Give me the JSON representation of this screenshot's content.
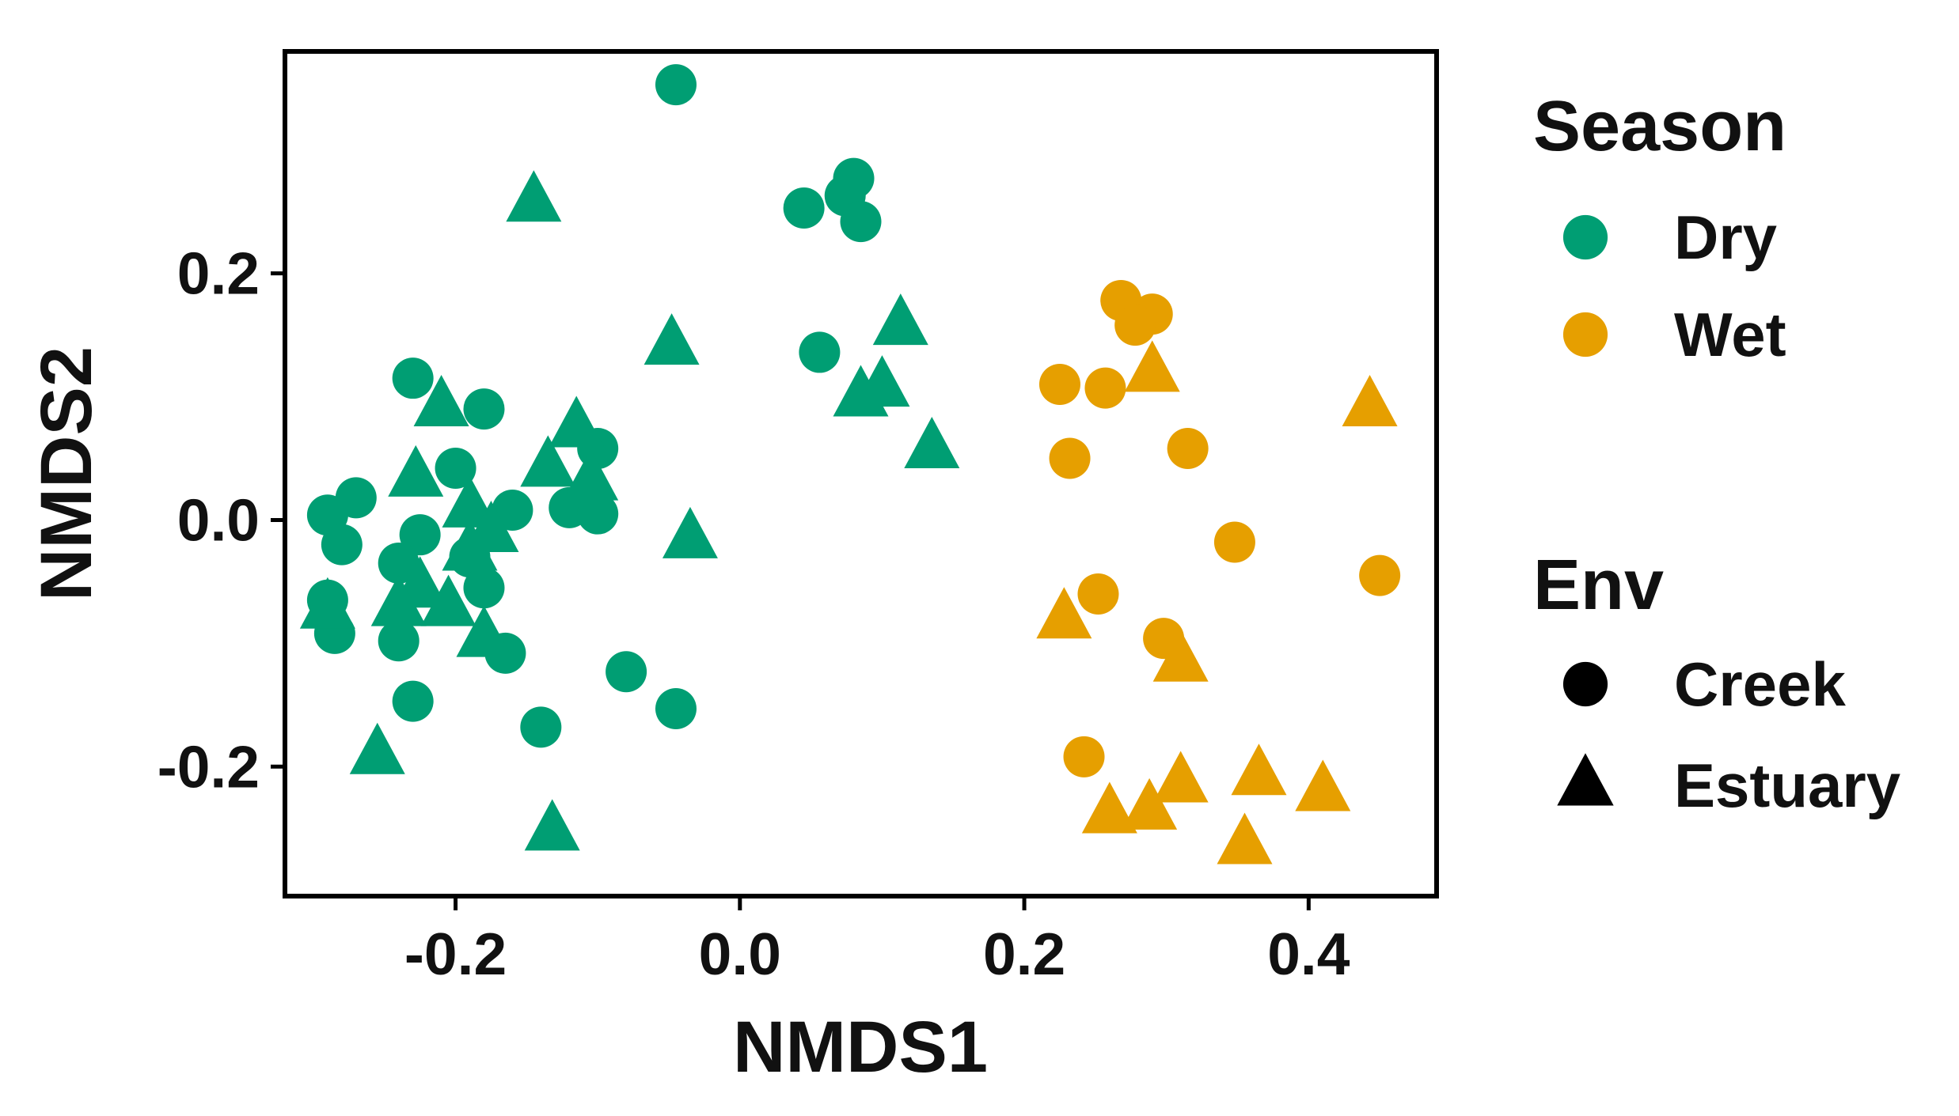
{
  "chart_data": {
    "type": "scatter",
    "title": "",
    "xlabel": "NMDS1",
    "ylabel": "NMDS2",
    "xlim": [
      -0.32,
      0.49
    ],
    "ylim": [
      -0.305,
      0.38
    ],
    "xticks": [
      -0.2,
      0.0,
      0.2,
      0.4
    ],
    "xtick_labels": [
      "-0.2",
      "0.0",
      "0.2",
      "0.4"
    ],
    "yticks": [
      -0.2,
      0.0,
      0.2
    ],
    "ytick_labels": [
      "-0.2",
      "0.0",
      "0.2"
    ],
    "grid": false,
    "legend_position": "right",
    "legends": [
      {
        "title": "Season",
        "entries": [
          {
            "label": "Dry",
            "color": "#009E73",
            "shape": "circle"
          },
          {
            "label": "Wet",
            "color": "#E69F00",
            "shape": "circle"
          }
        ]
      },
      {
        "title": "Env",
        "entries": [
          {
            "label": "Creek",
            "color": "#000000",
            "shape": "circle"
          },
          {
            "label": "Estuary",
            "color": "#000000",
            "shape": "triangle"
          }
        ]
      }
    ],
    "colors": {
      "Dry": "#009E73",
      "Wet": "#E69F00"
    },
    "series": [
      {
        "name": "Dry Creek",
        "season": "Dry",
        "env": "Creek",
        "points": [
          [
            -0.045,
            0.353
          ],
          [
            0.045,
            0.253
          ],
          [
            0.08,
            0.277
          ],
          [
            0.074,
            0.263
          ],
          [
            0.085,
            0.242
          ],
          [
            0.056,
            0.136
          ],
          [
            -0.23,
            0.115
          ],
          [
            -0.18,
            0.09
          ],
          [
            -0.1,
            0.058
          ],
          [
            -0.2,
            0.042
          ],
          [
            -0.27,
            0.018
          ],
          [
            -0.29,
            0.004
          ],
          [
            -0.16,
            0.008
          ],
          [
            -0.12,
            0.01
          ],
          [
            -0.1,
            0.005
          ],
          [
            -0.28,
            -0.02
          ],
          [
            -0.225,
            -0.012
          ],
          [
            -0.24,
            -0.035
          ],
          [
            -0.19,
            -0.03
          ],
          [
            -0.18,
            -0.055
          ],
          [
            -0.29,
            -0.065
          ],
          [
            -0.285,
            -0.092
          ],
          [
            -0.24,
            -0.098
          ],
          [
            -0.165,
            -0.108
          ],
          [
            -0.08,
            -0.123
          ],
          [
            -0.23,
            -0.147
          ],
          [
            -0.045,
            -0.153
          ],
          [
            -0.14,
            -0.168
          ]
        ]
      },
      {
        "name": "Dry Estuary",
        "season": "Dry",
        "env": "Estuary",
        "points": [
          [
            -0.145,
            0.258
          ],
          [
            -0.048,
            0.142
          ],
          [
            0.113,
            0.158
          ],
          [
            0.1,
            0.108
          ],
          [
            0.085,
            0.1
          ],
          [
            0.135,
            0.058
          ],
          [
            -0.21,
            0.092
          ],
          [
            -0.115,
            0.075
          ],
          [
            -0.228,
            0.035
          ],
          [
            -0.135,
            0.043
          ],
          [
            -0.105,
            0.032
          ],
          [
            -0.19,
            0.01
          ],
          [
            -0.175,
            -0.01
          ],
          [
            -0.035,
            -0.015
          ],
          [
            -0.19,
            -0.025
          ],
          [
            -0.225,
            -0.055
          ],
          [
            -0.24,
            -0.07
          ],
          [
            -0.205,
            -0.07
          ],
          [
            -0.29,
            -0.072
          ],
          [
            -0.18,
            -0.095
          ],
          [
            -0.255,
            -0.19
          ],
          [
            -0.132,
            -0.252
          ]
        ]
      },
      {
        "name": "Wet Creek",
        "season": "Wet",
        "env": "Creek",
        "points": [
          [
            0.268,
            0.178
          ],
          [
            0.29,
            0.167
          ],
          [
            0.278,
            0.158
          ],
          [
            0.225,
            0.11
          ],
          [
            0.257,
            0.107
          ],
          [
            0.315,
            0.058
          ],
          [
            0.232,
            0.05
          ],
          [
            0.348,
            -0.018
          ],
          [
            0.45,
            -0.045
          ],
          [
            0.252,
            -0.06
          ],
          [
            0.298,
            -0.096
          ],
          [
            0.242,
            -0.192
          ]
        ]
      },
      {
        "name": "Wet Estuary",
        "season": "Wet",
        "env": "Estuary",
        "points": [
          [
            0.29,
            0.12
          ],
          [
            0.443,
            0.092
          ],
          [
            0.228,
            -0.08
          ],
          [
            0.31,
            -0.115
          ],
          [
            0.31,
            -0.213
          ],
          [
            0.365,
            -0.207
          ],
          [
            0.41,
            -0.22
          ],
          [
            0.26,
            -0.238
          ],
          [
            0.288,
            -0.235
          ],
          [
            0.355,
            -0.263
          ]
        ]
      }
    ]
  }
}
